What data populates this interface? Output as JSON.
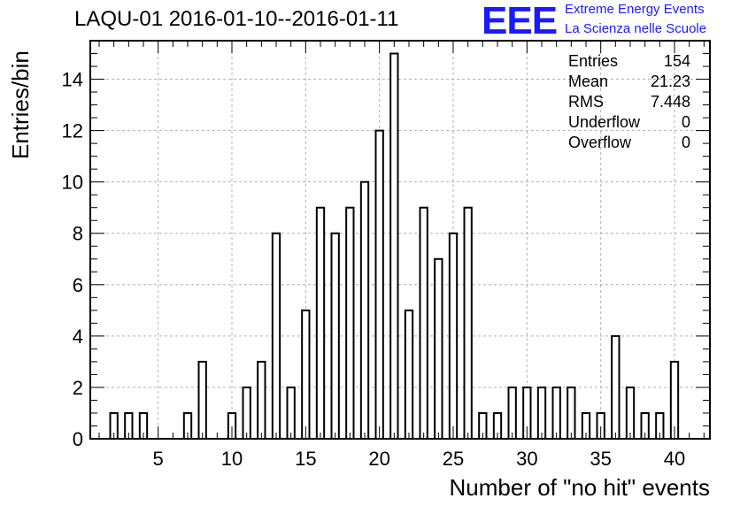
{
  "header": {
    "title": "LAQU-01 2016-01-10--2016-01-11",
    "logo_text": "EEE",
    "logo_line1": "Extreme Energy Events",
    "logo_line2": "La Scienza nelle Scuole",
    "logo_color": "#1a1aff"
  },
  "stats": [
    {
      "label": "Entries",
      "value": "154"
    },
    {
      "label": "Mean",
      "value": "21.23"
    },
    {
      "label": "RMS",
      "value": "7.448"
    },
    {
      "label": "Underflow",
      "value": "0"
    },
    {
      "label": "Overflow",
      "value": "0"
    }
  ],
  "chart_data": {
    "type": "bar",
    "xlabel": "Number of \"no hit\" events",
    "ylabel": "Entries/bin",
    "xlim": [
      0.4,
      42.4
    ],
    "ylim": [
      0,
      15.5
    ],
    "xticks": [
      5,
      10,
      15,
      20,
      25,
      30,
      35,
      40
    ],
    "yticks": [
      0,
      2,
      4,
      6,
      8,
      10,
      12,
      14
    ],
    "grid": true,
    "bar_width": 0.5,
    "categories": [
      2,
      3,
      4,
      7,
      8,
      10,
      11,
      12,
      13,
      14,
      15,
      16,
      17,
      18,
      19,
      20,
      21,
      22,
      23,
      24,
      25,
      26,
      27,
      28,
      29,
      30,
      31,
      32,
      33,
      34,
      35,
      36,
      37,
      38,
      39,
      40
    ],
    "values": [
      1,
      1,
      1,
      1,
      3,
      1,
      2,
      3,
      8,
      2,
      5,
      9,
      8,
      9,
      10,
      12,
      15,
      5,
      9,
      7,
      8,
      9,
      1,
      1,
      2,
      2,
      2,
      2,
      2,
      1,
      1,
      4,
      2,
      1,
      1,
      3
    ]
  }
}
